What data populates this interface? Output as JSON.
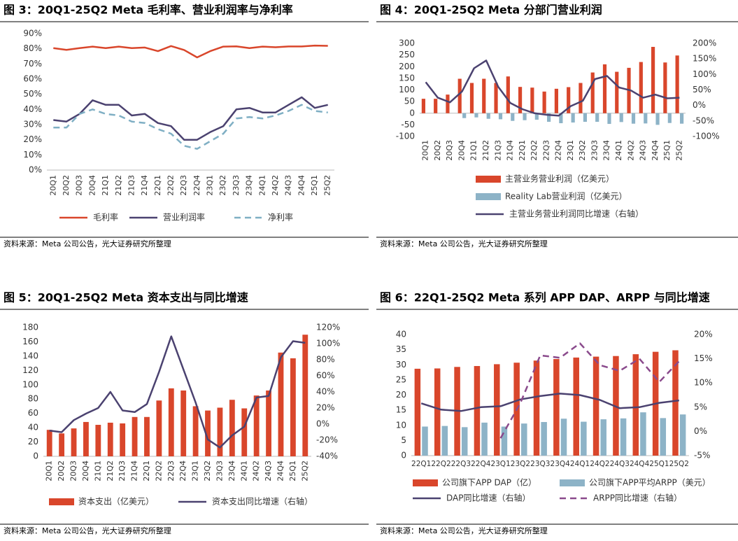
{
  "chart_data": [
    {
      "type": "line",
      "title": "图 3：20Q1-25Q2 Meta 毛利率、营业利润率与净利率",
      "source": "资料来源：Meta 公司公告，光大证券研究所整理",
      "categories": [
        "20Q1",
        "20Q2",
        "20Q3",
        "20Q4",
        "21Q1",
        "21Q2",
        "21Q3",
        "21Q4",
        "22Q1",
        "22Q2",
        "22Q3",
        "22Q4",
        "23Q1",
        "23Q2",
        "23Q3",
        "23Q4",
        "24Q1",
        "24Q2",
        "24Q3",
        "24Q4",
        "25Q1",
        "25Q2"
      ],
      "ylim": [
        0,
        90
      ],
      "yticks": [
        {
          "value": 0,
          "label": "0%"
        },
        {
          "value": 10,
          "label": "10%"
        },
        {
          "value": 20,
          "label": "20%"
        },
        {
          "value": 30,
          "label": "30%"
        },
        {
          "value": 40,
          "label": "40%"
        },
        {
          "value": 50,
          "label": "50%"
        },
        {
          "value": 60,
          "label": "60%"
        },
        {
          "value": 70,
          "label": "70%"
        },
        {
          "value": 80,
          "label": "80%"
        },
        {
          "value": 90,
          "label": "90%"
        }
      ],
      "series": [
        {
          "name": "毛利率",
          "kind": "line",
          "color": "#d9462b",
          "values": [
            80.4,
            79.3,
            80.4,
            81.4,
            80.4,
            81.4,
            80.4,
            80.8,
            78.4,
            81.8,
            79.2,
            74.3,
            78.4,
            81.4,
            81.6,
            80.4,
            81.4,
            81.0,
            81.5,
            81.5,
            82.1,
            81.9
          ]
        },
        {
          "name": "营业利润率",
          "kind": "line",
          "color": "#4b4270",
          "values": [
            33,
            32,
            37,
            46,
            43,
            43,
            36,
            37,
            31,
            29,
            20,
            20,
            25,
            29,
            40,
            41,
            38,
            38,
            43,
            48,
            41,
            43
          ]
        },
        {
          "name": "净利率",
          "kind": "line",
          "color": "#7fafc4",
          "dash": true,
          "values": [
            28,
            28,
            37,
            40,
            37,
            36,
            32,
            31,
            27,
            24,
            16,
            14,
            19,
            24,
            34,
            35,
            34,
            36,
            39,
            43,
            39,
            38
          ]
        }
      ]
    },
    {
      "type": "combo",
      "title": "图 4：20Q1-25Q2 Meta 分部门营业利润",
      "source": "资料来源：Meta 公司公告，光大证券研究所整理",
      "categories": [
        "20Q1",
        "20Q2",
        "20Q3",
        "20Q4",
        "21Q1",
        "21Q2",
        "21Q3",
        "21Q4",
        "22Q1",
        "22Q2",
        "22Q3",
        "22Q4",
        "23Q1",
        "23Q2",
        "23Q3",
        "23Q4",
        "24Q1",
        "24Q2",
        "24Q3",
        "24Q4",
        "25Q1",
        "25Q2"
      ],
      "ylim": [
        -100,
        300
      ],
      "yticks": [
        -100,
        -50,
        0,
        50,
        100,
        150,
        200,
        250,
        300
      ],
      "y2lim": [
        -100,
        200
      ],
      "y2ticks": [
        {
          "value": -100,
          "label": "-100%"
        },
        {
          "value": -50,
          "label": "-50%"
        },
        {
          "value": 0,
          "label": "0%"
        },
        {
          "value": 50,
          "label": "50%"
        },
        {
          "value": 100,
          "label": "100%"
        },
        {
          "value": 150,
          "label": "150%"
        },
        {
          "value": 200,
          "label": "200%"
        }
      ],
      "series": [
        {
          "name": "主营业务营业利润（亿美元）",
          "kind": "bar",
          "color": "#d9462b",
          "values": [
            62,
            62,
            80,
            148,
            130,
            148,
            130,
            158,
            113,
            110,
            93,
            105,
            112,
            130,
            175,
            210,
            178,
            195,
            220,
            285,
            218,
            248
          ]
        },
        {
          "name": "Reality Lab营业利润（亿美元）",
          "kind": "bar",
          "color": "#8db3c7",
          "values": [
            null,
            null,
            null,
            -21,
            -18,
            -24,
            -26,
            -33,
            -30,
            -28,
            -37,
            -43,
            -40,
            -37,
            -37,
            -46,
            -38,
            -45,
            -44,
            -50,
            -42,
            -45
          ]
        },
        {
          "name": "主营业务营业利润同比增速（右轴）",
          "kind": "line",
          "axis": "y2",
          "color": "#4b4270",
          "values": [
            75,
            25,
            10,
            45,
            120,
            145,
            60,
            8,
            -12,
            -25,
            -30,
            -33,
            -2,
            15,
            85,
            95,
            58,
            48,
            25,
            35,
            23,
            25
          ]
        }
      ]
    },
    {
      "type": "combo",
      "title": "图 5：20Q1-25Q2 Meta 资本支出与同比增速",
      "source": "资料来源：Meta 公司公告，光大证券研究所整理",
      "categories": [
        "20Q1",
        "20Q2",
        "20Q3",
        "20Q4",
        "21Q1",
        "21Q2",
        "21Q3",
        "21Q4",
        "22Q1",
        "22Q2",
        "22Q3",
        "22Q4",
        "23Q1",
        "23Q2",
        "23Q3",
        "23Q4",
        "24Q1",
        "24Q2",
        "24Q3",
        "24Q4",
        "25Q1",
        "25Q2"
      ],
      "ylim": [
        0,
        180
      ],
      "yticks": [
        0,
        20,
        40,
        60,
        80,
        100,
        120,
        140,
        160,
        180
      ],
      "y2lim": [
        -40,
        120
      ],
      "y2ticks": [
        {
          "value": -40,
          "label": "-40%"
        },
        {
          "value": -20,
          "label": "-20%"
        },
        {
          "value": 0,
          "label": "0%"
        },
        {
          "value": 20,
          "label": "20%"
        },
        {
          "value": 40,
          "label": "40%"
        },
        {
          "value": 60,
          "label": "60%"
        },
        {
          "value": 80,
          "label": "80%"
        },
        {
          "value": 100,
          "label": "100%"
        },
        {
          "value": 120,
          "label": "120%"
        }
      ],
      "series": [
        {
          "name": "资本支出（亿美元）",
          "kind": "bar",
          "color": "#d9462b",
          "values": [
            37,
            32,
            39,
            48,
            44,
            47,
            46,
            55,
            55,
            78,
            95,
            92,
            70,
            64,
            68,
            79,
            67,
            85,
            92,
            145,
            137,
            170
          ]
        },
        {
          "name": "资本支出同比增速（右轴）",
          "kind": "line",
          "axis": "y2",
          "color": "#4b4270",
          "values": [
            -8,
            -10,
            5,
            13,
            20,
            40,
            17,
            15,
            25,
            65,
            109,
            68,
            27,
            -19,
            -29,
            -14,
            -3,
            33,
            35,
            83,
            103,
            101
          ]
        }
      ]
    },
    {
      "type": "combo",
      "title": "图 6：22Q1-25Q2 Meta 系列 APP DAP、ARPP 与同比增速",
      "source": "资料来源：Meta 公司公告，光大证券研究所整理",
      "categories": [
        "22Q1",
        "22Q2",
        "22Q3",
        "22Q4",
        "23Q1",
        "23Q2",
        "23Q3",
        "23Q4",
        "24Q1",
        "24Q2",
        "24Q3",
        "24Q4",
        "25Q1",
        "25Q2"
      ],
      "ylim": [
        0,
        40
      ],
      "yticks": [
        0,
        5,
        10,
        15,
        20,
        25,
        30,
        35,
        40
      ],
      "y2lim": [
        -5,
        20
      ],
      "y2ticks": [
        {
          "value": -5,
          "label": "-5%"
        },
        {
          "value": 0,
          "label": "0%"
        },
        {
          "value": 5,
          "label": "5%"
        },
        {
          "value": 10,
          "label": "10%"
        },
        {
          "value": 15,
          "label": "15%"
        },
        {
          "value": 20,
          "label": "20%"
        }
      ],
      "series": [
        {
          "name": "公司旗下APP DAP（亿）",
          "kind": "bar",
          "color": "#d9462b",
          "values": [
            28.7,
            28.8,
            29.3,
            29.6,
            30.2,
            30.7,
            31.4,
            31.9,
            32.4,
            32.7,
            32.9,
            33.5,
            34.3,
            34.8
          ]
        },
        {
          "name": "公司旗下APP平均ARPP（美元）",
          "kind": "bar",
          "color": "#8db3c7",
          "values": [
            9.6,
            9.8,
            9.4,
            10.9,
            9.6,
            10.6,
            11.1,
            12.2,
            11.2,
            12.0,
            12.3,
            14.3,
            12.4,
            13.6
          ]
        },
        {
          "name": "DAP同比增速（右轴）",
          "kind": "line",
          "axis": "y2",
          "color": "#4b4270",
          "values": [
            5.8,
            4.5,
            4.2,
            5.0,
            5.2,
            6.6,
            7.3,
            7.8,
            7.5,
            6.5,
            4.8,
            5.0,
            5.9,
            6.4
          ]
        },
        {
          "name": "ARPP同比增速（右轴）",
          "kind": "line",
          "axis": "y2",
          "dash": true,
          "color": "#8a4a8c",
          "values": [
            null,
            null,
            null,
            null,
            -1.4,
            5.9,
            15.7,
            15.2,
            18.2,
            13.7,
            12.5,
            15.0,
            10.2,
            14.5
          ]
        }
      ]
    }
  ]
}
